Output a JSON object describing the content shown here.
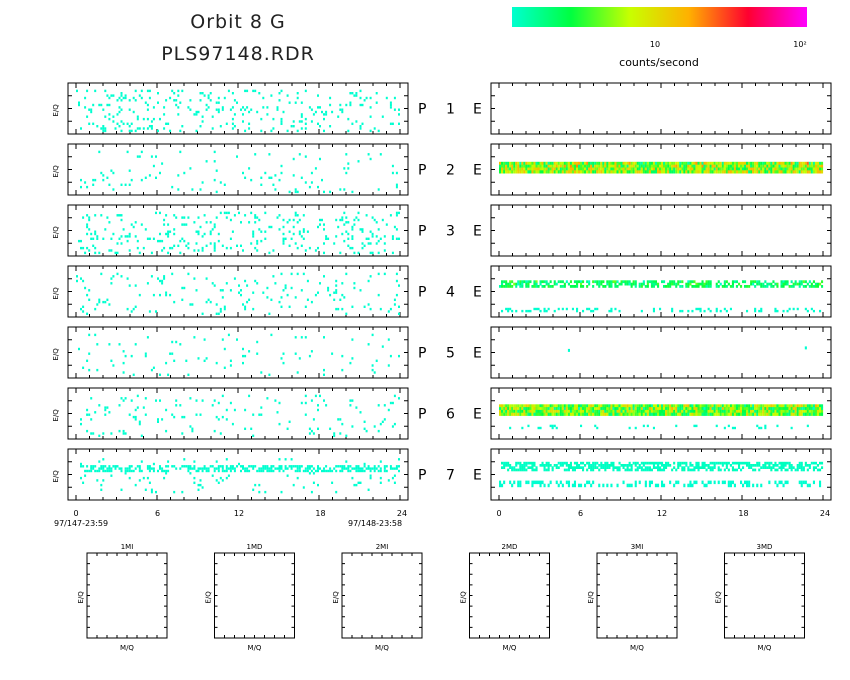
{
  "title": {
    "line1": "Orbit  8  G",
    "line2": "PLS97148.RDR"
  },
  "colorbar": {
    "label": "counts/second",
    "tick_labels": [
      "10",
      "10²"
    ],
    "colors": [
      "#00ffd0",
      "#00ff40",
      "#c8ff00",
      "#ffb000",
      "#ff0030",
      "#ff00ff"
    ]
  },
  "chart_data": {
    "type": "heatmap",
    "time_axis": {
      "ticks": [
        "0",
        "6",
        "12",
        "18",
        "24"
      ],
      "start_label": "97/147-23:59",
      "end_label": "97/148-23:58",
      "range_hours": [
        0,
        24
      ]
    },
    "ylabel": "E/Q",
    "rows": [
      {
        "p": "P",
        "num": "1",
        "e": "E",
        "left_density": 0.1,
        "right": {
          "bands": []
        }
      },
      {
        "p": "P",
        "num": "2",
        "e": "E",
        "left_density": 0.035,
        "right": {
          "bands": [
            {
              "y": 0.35,
              "h": 0.22,
              "level": 0.35,
              "fill": 1.0
            }
          ]
        }
      },
      {
        "p": "P",
        "num": "3",
        "e": "E",
        "left_density": 0.11,
        "right": {
          "bands": []
        }
      },
      {
        "p": "P",
        "num": "4",
        "e": "E",
        "left_density": 0.05,
        "right": {
          "bands": [
            {
              "y": 0.28,
              "h": 0.14,
              "level": 0.15,
              "fill": 0.65
            },
            {
              "y": 0.82,
              "h": 0.08,
              "level": 0.0,
              "fill": 0.25
            }
          ]
        }
      },
      {
        "p": "P",
        "num": "5",
        "e": "E",
        "left_density": 0.035,
        "right": {
          "bands": [
            {
              "y": 0.38,
              "h": 0.1,
              "level": 0.0,
              "fill": 0.015
            }
          ]
        }
      },
      {
        "p": "P",
        "num": "6",
        "e": "E",
        "left_density": 0.05,
        "right": {
          "bands": [
            {
              "y": 0.32,
              "h": 0.22,
              "level": 0.3,
              "fill": 1.0
            },
            {
              "y": 0.72,
              "h": 0.08,
              "level": 0.0,
              "fill": 0.1
            }
          ]
        }
      },
      {
        "p": "P",
        "num": "7",
        "e": "E",
        "left_density": 0.3,
        "right": {
          "bands": [
            {
              "y": 0.25,
              "h": 0.18,
              "level": 0.02,
              "fill": 0.6
            },
            {
              "y": 0.62,
              "h": 0.12,
              "level": 0.0,
              "fill": 0.35
            }
          ]
        }
      }
    ],
    "mq_panels": [
      {
        "title": "1MI",
        "ylabel": "E/Q",
        "xlabel": "M/Q"
      },
      {
        "title": "1MD",
        "ylabel": "E/Q",
        "xlabel": "M/Q"
      },
      {
        "title": "2MI",
        "ylabel": "E/Q",
        "xlabel": "M/Q"
      },
      {
        "title": "2MD",
        "ylabel": "E/Q",
        "xlabel": "M/Q"
      },
      {
        "title": "3MI",
        "ylabel": "E/Q",
        "xlabel": "M/Q"
      },
      {
        "title": "3MD",
        "ylabel": "E/Q",
        "xlabel": "M/Q"
      }
    ]
  }
}
